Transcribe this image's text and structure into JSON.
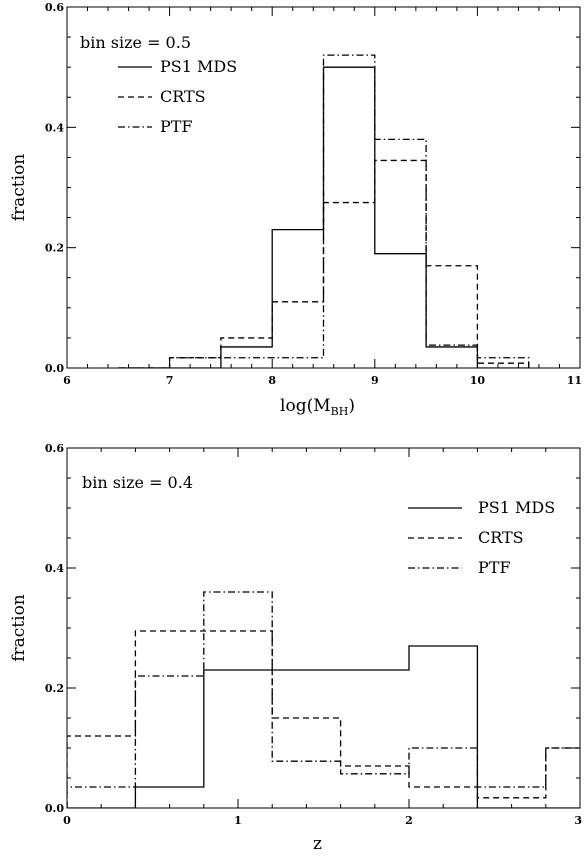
{
  "chart_data": [
    {
      "type": "step",
      "annotation": "bin size = 0.5",
      "xlabel": "log(M",
      "xlabel_sub": "BH",
      "xlabel_close": ")",
      "ylabel": "fraction",
      "xlim": [
        6,
        11
      ],
      "ylim": [
        0,
        0.6
      ],
      "xticks": [
        "6",
        "7",
        "8",
        "9",
        "10",
        "11"
      ],
      "yticks": [
        "0.0",
        "0.2",
        "0.4",
        "0.6"
      ],
      "legend_placement": "top-left",
      "bin_edges": [
        6.5,
        7.0,
        7.5,
        8.0,
        8.5,
        9.0,
        9.5,
        10.0,
        10.5
      ],
      "series": [
        {
          "name": "PS1 MDS",
          "style": "solid",
          "values": [
            0,
            0,
            0.035,
            0.23,
            0.5,
            0.19,
            0.035,
            0,
            0
          ]
        },
        {
          "name": "CRTS",
          "style": "dashed",
          "values": [
            0,
            0.017,
            0.05,
            0.11,
            0.275,
            0.345,
            0.17,
            0.008,
            0
          ]
        },
        {
          "name": "PTF",
          "style": "dashdot",
          "values": [
            0,
            0.017,
            0.017,
            0.017,
            0.52,
            0.38,
            0.038,
            0.017,
            0
          ]
        }
      ]
    },
    {
      "type": "step",
      "annotation": "bin size = 0.4",
      "xlabel": "z",
      "ylabel": "fraction",
      "xlim": [
        0,
        3
      ],
      "ylim": [
        0,
        0.6
      ],
      "xticks": [
        "0",
        "1",
        "2",
        "3"
      ],
      "yticks": [
        "0.0",
        "0.2",
        "0.4",
        "0.6"
      ],
      "legend_placement": "top-right",
      "bin_edges": [
        0.0,
        0.4,
        0.8,
        1.2,
        1.6,
        2.0,
        2.4,
        2.8,
        3.2
      ],
      "series": [
        {
          "name": "PS1 MDS",
          "style": "solid",
          "values": [
            0,
            0.035,
            0.23,
            0.23,
            0.23,
            0.27,
            0,
            0
          ]
        },
        {
          "name": "CRTS",
          "style": "dashed",
          "values": [
            0.12,
            0.295,
            0.295,
            0.15,
            0.07,
            0.035,
            0.017,
            0.1
          ]
        },
        {
          "name": "PTF",
          "style": "dashdot",
          "values": [
            0.035,
            0.22,
            0.36,
            0.078,
            0.057,
            0.1,
            0.035,
            0.1
          ]
        }
      ]
    }
  ]
}
